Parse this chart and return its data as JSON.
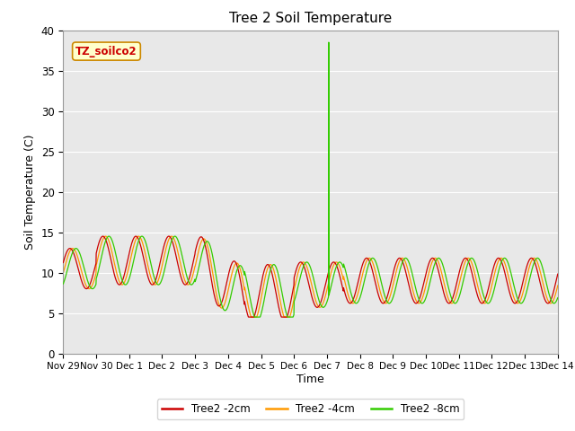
{
  "title": "Tree 2 Soil Temperature",
  "xlabel": "Time",
  "ylabel": "Soil Temperature (C)",
  "ylim": [
    0,
    40
  ],
  "yticks": [
    0,
    5,
    10,
    15,
    20,
    25,
    30,
    35,
    40
  ],
  "xtick_labels": [
    "Nov 29",
    "Nov 30",
    "Dec 1",
    "Dec 2",
    "Dec 3",
    "Dec 4",
    "Dec 5",
    "Dec 6",
    "Dec 7",
    "Dec 8",
    "Dec 9",
    "Dec 10",
    "Dec 11",
    "Dec 12",
    "Dec 13",
    "Dec 14"
  ],
  "bg_color": "#e8e8e8",
  "fig_color": "#ffffff",
  "line_colors": [
    "#cc0000",
    "#ff9900",
    "#33cc00"
  ],
  "line_labels": [
    "Tree2 -2cm",
    "Tree2 -4cm",
    "Tree2 -8cm"
  ],
  "watermark_text": "TZ_soilco2",
  "watermark_color": "#cc0000",
  "watermark_bg": "#ffffcc",
  "watermark_border": "#cc8800",
  "n_days": 15,
  "pts_per_day": 144,
  "spike_day": 8.05,
  "spike_val": 38.5
}
